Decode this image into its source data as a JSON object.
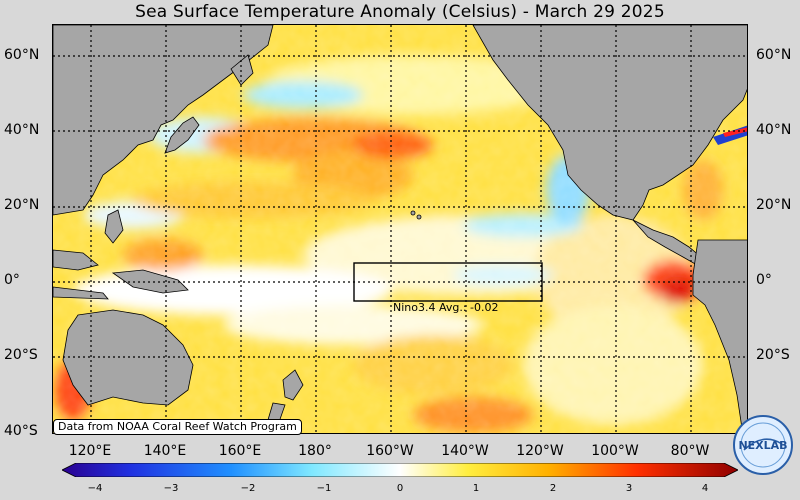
{
  "title": "Sea Surface Temperature Anomaly (Celsius) - March 29 2025",
  "lat_labels": [
    "60°N",
    "40°N",
    "20°N",
    "0°",
    "20°S",
    "40°S"
  ],
  "lon_labels": [
    "120°E",
    "140°E",
    "160°E",
    "180°",
    "160°W",
    "140°W",
    "120°W",
    "100°W",
    "80°W"
  ],
  "credit": "Data from NOAA Coral Reef Watch Program",
  "nino_box_label": "Nino3.4 Avg.: -0.02",
  "colorbar": {
    "ticks": [
      "−4",
      "−3",
      "−2",
      "−1",
      "0",
      "1",
      "2",
      "3",
      "4"
    ],
    "range": [
      -4,
      4
    ]
  },
  "logo_text": "NEXLAB",
  "colors": {
    "land": "#a6a6a6",
    "ocean_neutral": "#ffffff",
    "warm": "#ffd000",
    "hot": "#e02000",
    "cool": "#a8ecff"
  }
}
